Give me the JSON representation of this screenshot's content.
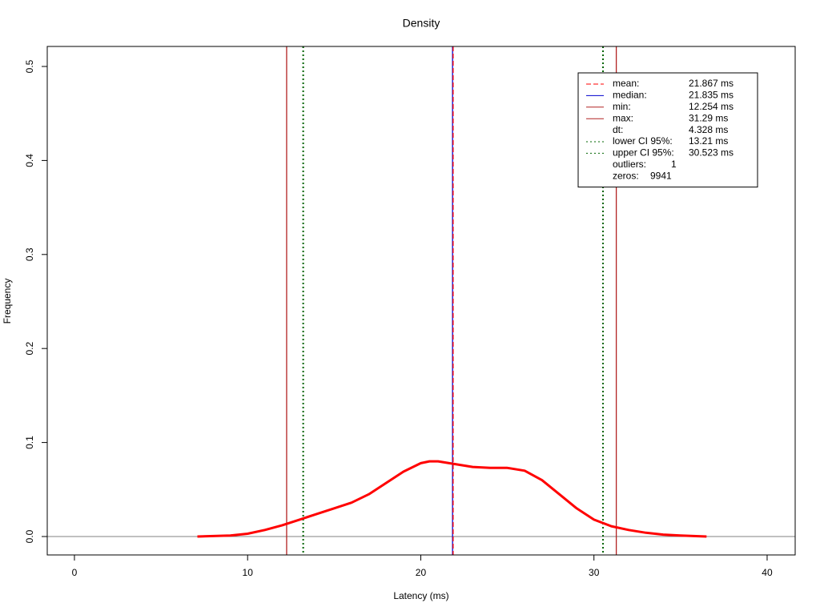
{
  "chart_data": {
    "type": "line",
    "title": "Density",
    "x_label": "Latency (ms)",
    "y_label": "Frequency",
    "x": [
      7.1,
      9,
      10,
      11,
      12,
      13,
      14,
      15,
      16,
      17,
      18,
      19,
      20,
      20.5,
      21,
      22,
      23,
      24,
      25,
      26,
      27,
      28,
      29,
      30,
      31,
      32,
      33,
      34,
      35,
      36.5
    ],
    "series": [
      {
        "color": "#ff0000",
        "values": [
          0.0,
          0.001,
          0.003,
          0.007,
          0.012,
          0.018,
          0.024,
          0.03,
          0.036,
          0.045,
          0.057,
          0.069,
          0.078,
          0.08,
          0.08,
          0.077,
          0.074,
          0.073,
          0.073,
          0.07,
          0.06,
          0.045,
          0.03,
          0.018,
          0.011,
          0.007,
          0.004,
          0.002,
          0.001,
          0.0
        ]
      }
    ],
    "xlim": [
      -1.57,
      41.62
    ],
    "ylim": [
      -0.0196,
      0.5213
    ],
    "xticks": [
      0,
      10,
      20,
      30,
      40
    ],
    "yticks": [
      {
        "value": 0,
        "label": "0.0"
      },
      0.1,
      0.2,
      0.3,
      0.4,
      0.5
    ],
    "legend_position": "top-right",
    "legend_entries": [
      {
        "name": "mean:",
        "value": 21.867,
        "value_label": "21.867 ms",
        "color": "#ff0000",
        "dash": "dashed"
      },
      {
        "name": "median:",
        "value": 21.835,
        "value_label": "21.835 ms",
        "color": "#0000cd",
        "dash": "solid"
      },
      {
        "name": "min:",
        "value": 12.254,
        "value_label": "12.254 ms",
        "color": "#b22222",
        "dash": "solid"
      },
      {
        "name": "max:",
        "value": 31.29,
        "value_label": "31.29 ms",
        "color": "#b22222",
        "dash": "solid"
      },
      {
        "name": "dt:",
        "value_label": "4.328 ms"
      },
      {
        "name": "lower CI 95%:",
        "value": 13.21,
        "value_label": "13.21 ms",
        "color": "#006400",
        "dash": "dotted"
      },
      {
        "name": "upper CI 95%:",
        "value": 30.523,
        "value_label": "30.523 ms",
        "color": "#006400",
        "dash": "dotted"
      },
      {
        "name": "outliers:",
        "value_label": "1"
      },
      {
        "name": "zeros:",
        "value_label": "9941"
      }
    ]
  }
}
